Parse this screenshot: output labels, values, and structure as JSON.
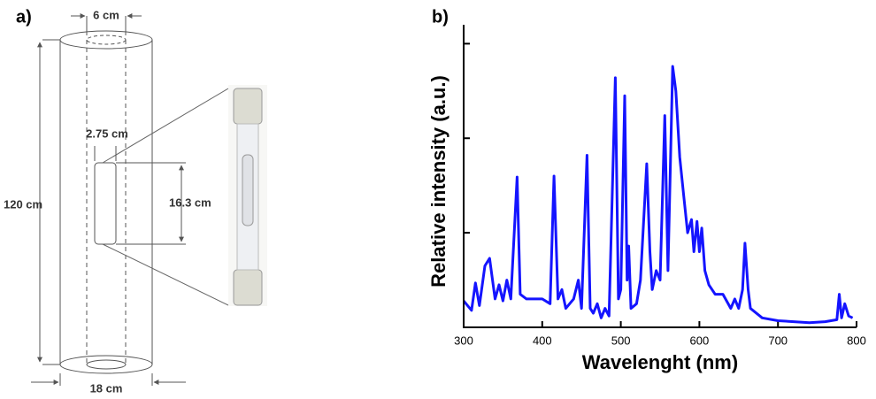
{
  "figure_a": {
    "label": "a)",
    "outer_diameter": "6 cm",
    "lamp_diameter": "2.75 cm",
    "lamp_length": "16.3 cm",
    "height": "120 cm",
    "base_diameter": "18 cm"
  },
  "chart_data": {
    "type": "line",
    "label": "b)",
    "xlabel": "Wavelenght (nm)",
    "ylabel": "Relative intensity (a.u.)",
    "color": "#1414ff",
    "xlim": [
      300,
      800
    ],
    "xticks": [
      300,
      400,
      500,
      600,
      700,
      800
    ],
    "ylim": [
      0,
      3.2
    ],
    "yticks": [
      0,
      1,
      2,
      3
    ],
    "x": [
      300,
      310,
      315,
      320,
      327,
      333,
      340,
      345,
      350,
      355,
      360,
      368,
      372,
      380,
      400,
      410,
      415,
      420,
      425,
      430,
      440,
      446,
      450,
      457,
      461,
      465,
      470,
      475,
      480,
      485,
      493,
      497,
      500,
      505,
      508,
      510,
      513,
      520,
      525,
      533,
      537,
      540,
      545,
      550,
      556,
      560,
      566,
      570,
      575,
      580,
      585,
      590,
      593,
      597,
      600,
      603,
      607,
      612,
      620,
      630,
      640,
      645,
      650,
      655,
      658,
      662,
      665,
      680,
      700,
      720,
      740,
      760,
      775,
      778,
      781,
      785,
      790,
      795
    ],
    "values": [
      0.28,
      0.18,
      0.47,
      0.23,
      0.65,
      0.73,
      0.3,
      0.45,
      0.28,
      0.5,
      0.3,
      1.59,
      0.35,
      0.3,
      0.3,
      0.25,
      1.6,
      0.3,
      0.4,
      0.2,
      0.3,
      0.5,
      0.2,
      1.82,
      0.2,
      0.15,
      0.25,
      0.1,
      0.2,
      0.12,
      2.64,
      0.3,
      0.4,
      2.45,
      0.5,
      0.86,
      0.2,
      0.25,
      0.5,
      1.73,
      0.8,
      0.4,
      0.6,
      0.5,
      2.24,
      0.6,
      2.76,
      2.5,
      1.8,
      1.4,
      1.0,
      1.14,
      0.8,
      1.12,
      0.8,
      1.05,
      0.6,
      0.45,
      0.35,
      0.35,
      0.2,
      0.3,
      0.2,
      0.4,
      0.89,
      0.4,
      0.2,
      0.1,
      0.07,
      0.06,
      0.05,
      0.06,
      0.08,
      0.35,
      0.1,
      0.25,
      0.12,
      0.1
    ]
  }
}
